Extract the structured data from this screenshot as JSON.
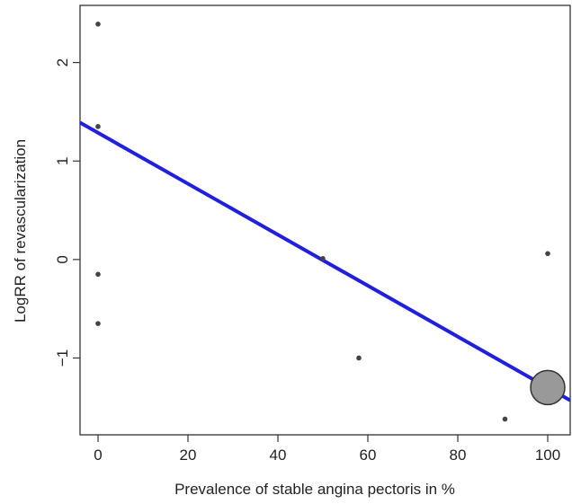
{
  "chart_data": {
    "type": "scatter",
    "title": "",
    "xlabel": "Prevalence of stable angina pectoris in %",
    "ylabel": "LogRR of revascularization",
    "xlim": [
      -4,
      105
    ],
    "ylim": [
      -1.78,
      2.58
    ],
    "x_ticks": [
      0,
      20,
      40,
      60,
      80,
      100
    ],
    "x_tick_labels": [
      "0",
      "20",
      "40",
      "60",
      "80",
      "100"
    ],
    "y_ticks": [
      -1,
      0,
      1,
      2
    ],
    "y_tick_labels": [
      "−1",
      "0",
      "1",
      "2"
    ],
    "grid": false,
    "legend": "none",
    "points": [
      {
        "x": 0,
        "y": 2.39,
        "weight": "small"
      },
      {
        "x": 0,
        "y": 1.35,
        "weight": "small"
      },
      {
        "x": 0,
        "y": -0.15,
        "weight": "small"
      },
      {
        "x": 0,
        "y": -0.65,
        "weight": "small"
      },
      {
        "x": 50,
        "y": 0.01,
        "weight": "small"
      },
      {
        "x": 58,
        "y": -1.0,
        "weight": "small"
      },
      {
        "x": 90.5,
        "y": -1.62,
        "weight": "small"
      },
      {
        "x": 100,
        "y": 0.06,
        "weight": "small"
      },
      {
        "x": 100,
        "y": -1.3,
        "weight": "large"
      }
    ],
    "regression_line": {
      "x": [
        -4,
        105
      ],
      "y": [
        1.39,
        -1.43
      ]
    },
    "colors": {
      "line": "#1f1fdd",
      "point": "#444444",
      "large_point_fill": "#999999",
      "large_point_stroke": "#333333",
      "axis": "#333333"
    }
  }
}
